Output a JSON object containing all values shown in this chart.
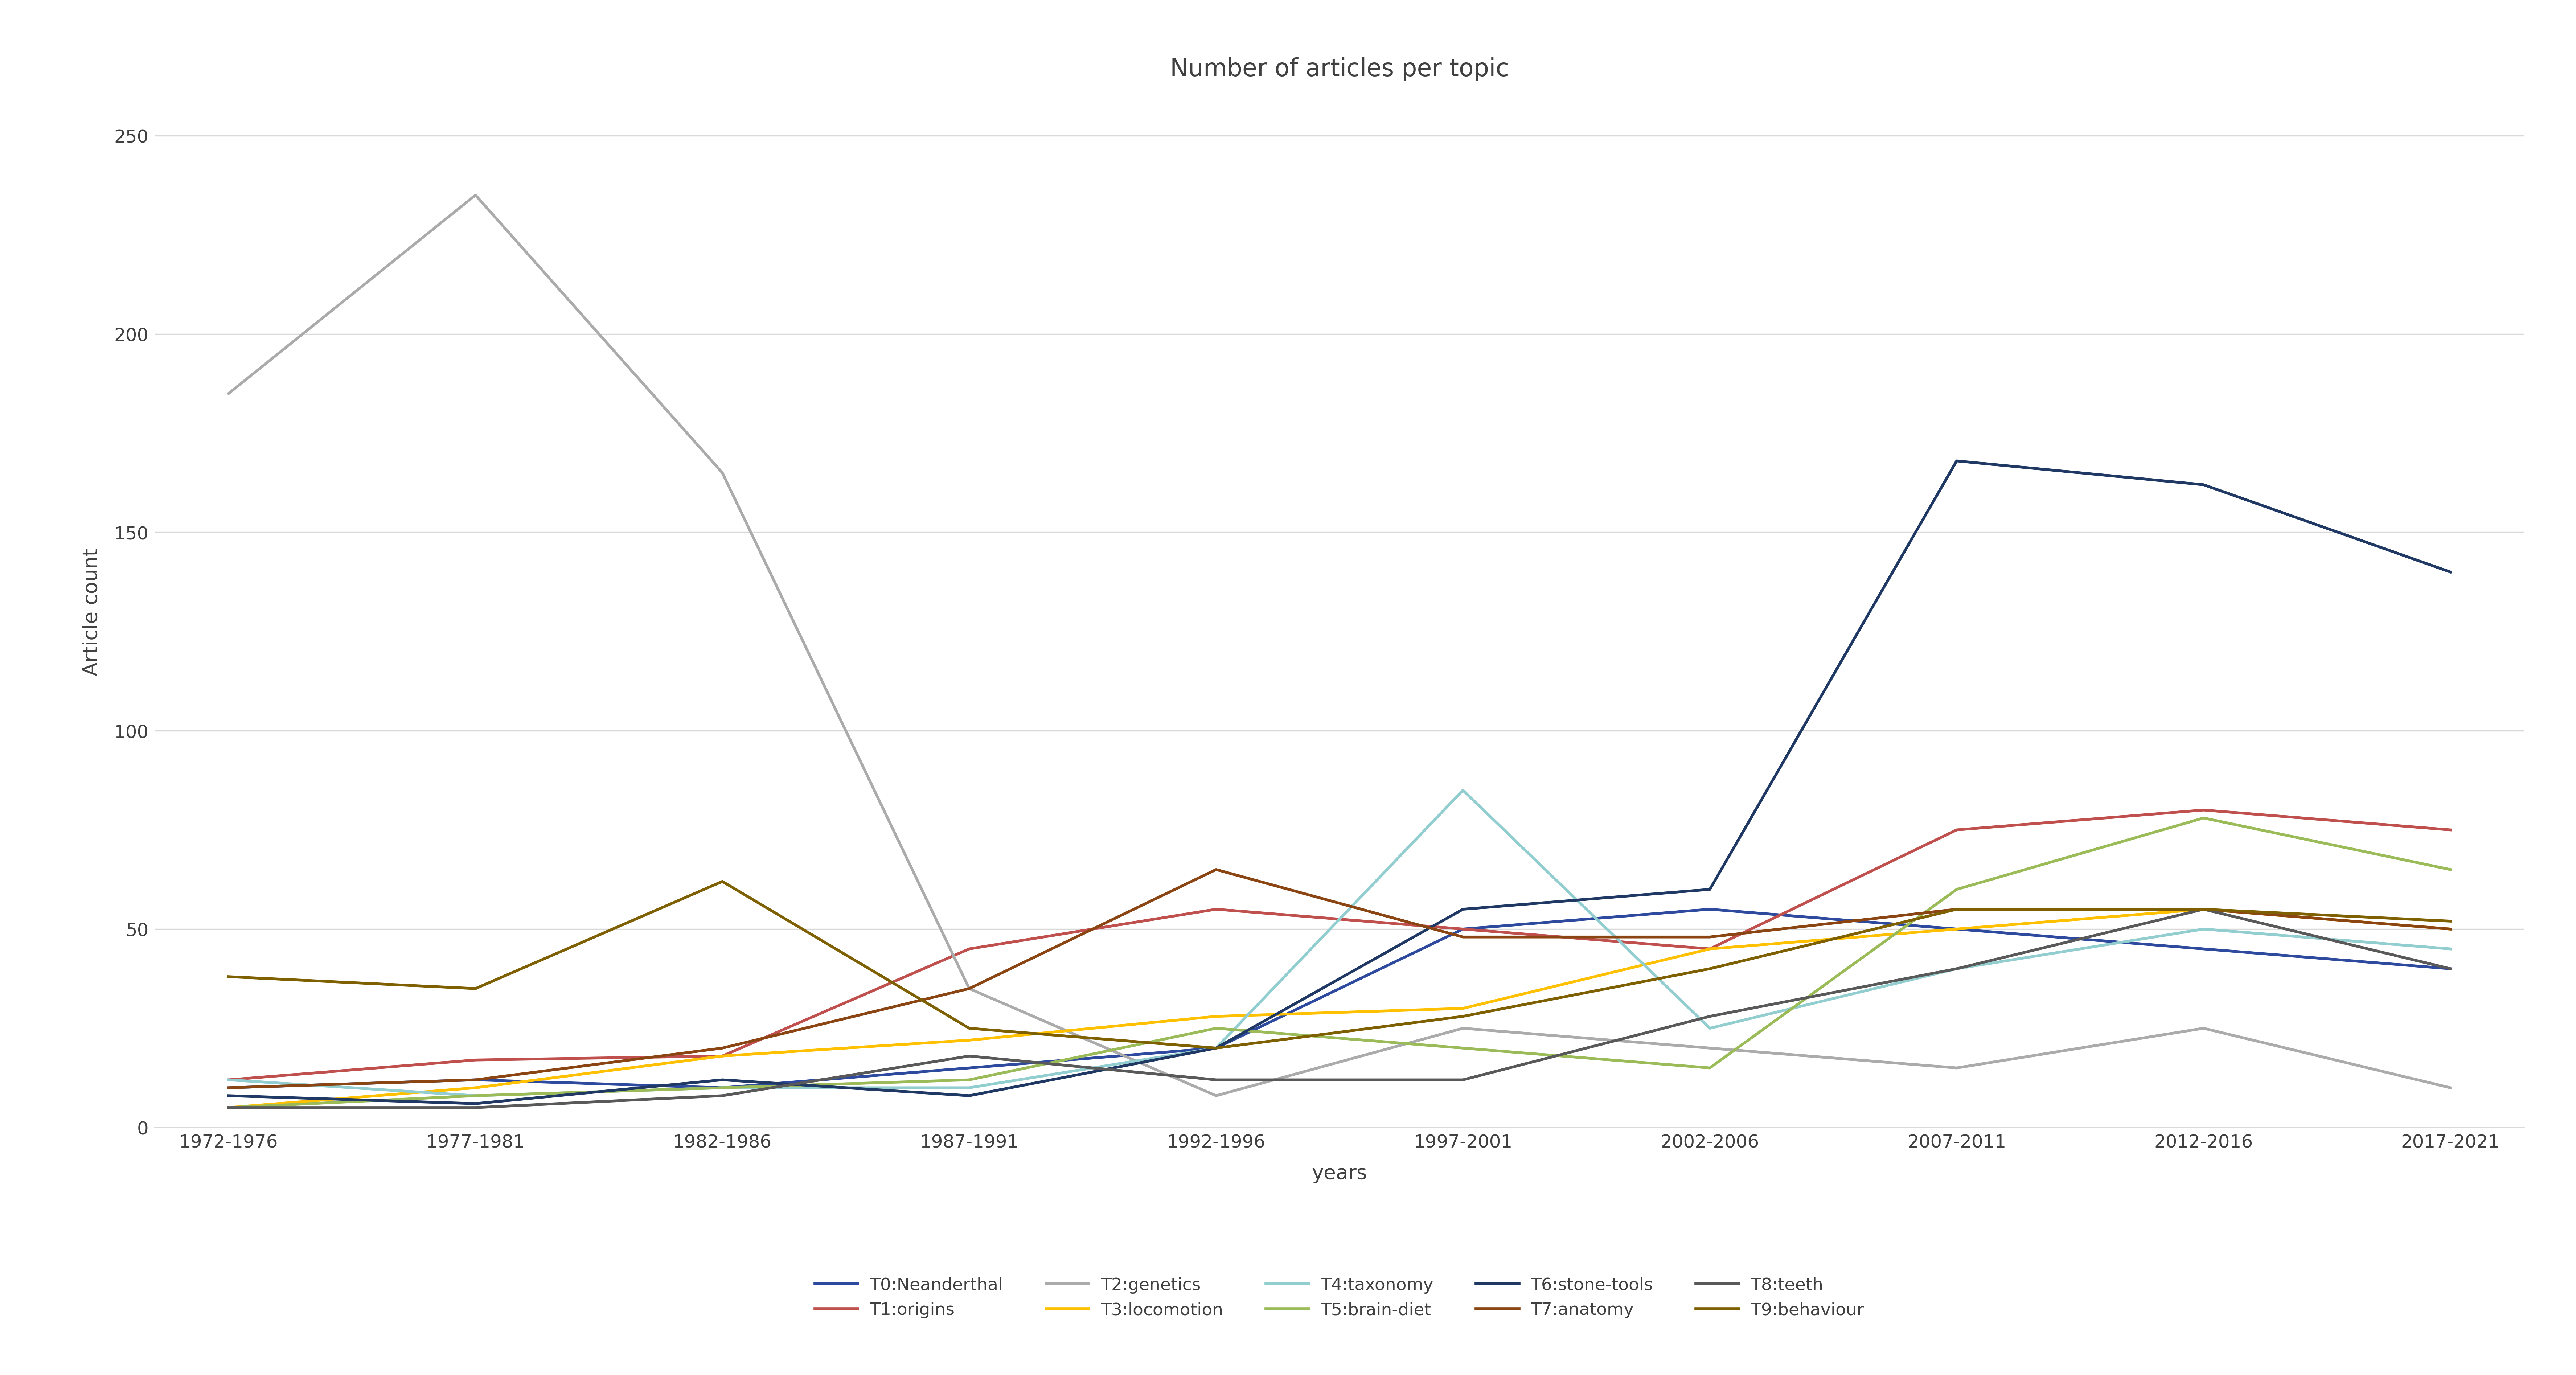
{
  "title": "Number of articles per topic",
  "xlabel": "years",
  "ylabel": "Article count",
  "x_labels": [
    "1972-1976",
    "1977-1981",
    "1982-1986",
    "1987-1991",
    "1992-1996",
    "1997-2001",
    "2002-2006",
    "2007-2011",
    "2012-2016",
    "2017-2021"
  ],
  "series": [
    {
      "label": "T0:Neanderthal",
      "color": "#2E4A9E",
      "values": [
        10,
        12,
        10,
        15,
        20,
        50,
        55,
        50,
        45,
        40
      ]
    },
    {
      "label": "T1:origins",
      "color": "#C0504D",
      "values": [
        12,
        17,
        18,
        45,
        55,
        50,
        45,
        75,
        80,
        75
      ]
    },
    {
      "label": "T2:genetics",
      "color": "#ABABAB",
      "values": [
        185,
        235,
        165,
        35,
        8,
        25,
        20,
        15,
        25,
        10
      ]
    },
    {
      "label": "T3:locomotion",
      "color": "#FFC000",
      "values": [
        5,
        10,
        18,
        22,
        28,
        30,
        45,
        50,
        55,
        50
      ]
    },
    {
      "label": "T4:taxonomy",
      "color": "#92CDCF",
      "values": [
        12,
        8,
        10,
        10,
        20,
        85,
        25,
        40,
        50,
        45
      ]
    },
    {
      "label": "T5:brain-diet",
      "color": "#9BBB59",
      "values": [
        5,
        8,
        10,
        12,
        25,
        20,
        15,
        60,
        78,
        65
      ]
    },
    {
      "label": "T6:stone-tools",
      "color": "#1F3864",
      "values": [
        8,
        6,
        12,
        8,
        20,
        55,
        60,
        168,
        162,
        140
      ]
    },
    {
      "label": "T7:anatomy",
      "color": "#8B4513",
      "values": [
        10,
        12,
        20,
        35,
        65,
        48,
        48,
        55,
        55,
        50
      ]
    },
    {
      "label": "T8:teeth",
      "color": "#595959",
      "values": [
        5,
        5,
        8,
        18,
        12,
        12,
        28,
        40,
        55,
        40
      ]
    },
    {
      "label": "T9:behaviour",
      "color": "#7F6000",
      "values": [
        38,
        35,
        62,
        25,
        20,
        28,
        40,
        55,
        55,
        52
      ]
    }
  ],
  "ylim": [
    0,
    260
  ],
  "yticks": [
    0,
    50,
    100,
    150,
    200,
    250
  ],
  "background_color": "#ffffff",
  "grid_color": "#D9D9D9",
  "title_fontsize": 48,
  "label_fontsize": 40,
  "tick_fontsize": 36,
  "legend_fontsize": 34,
  "line_width": 5.5
}
